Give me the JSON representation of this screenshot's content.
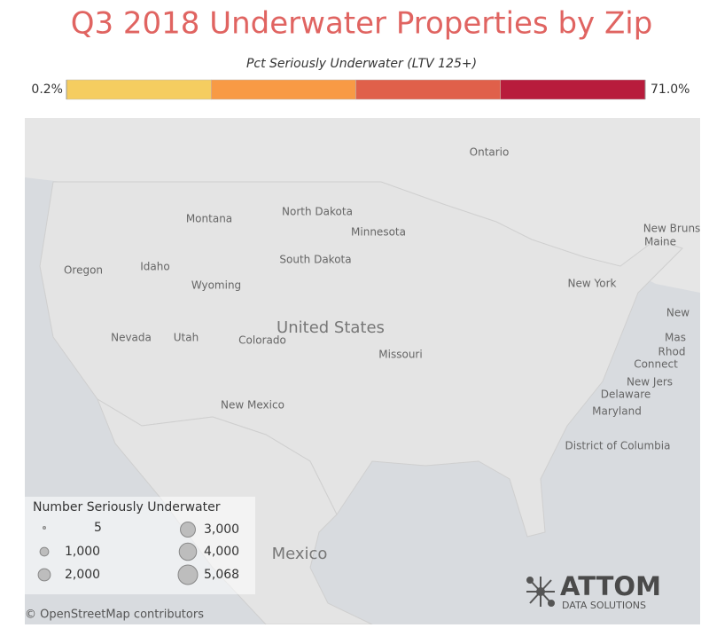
{
  "title": "Q3 2018 Underwater Properties by Zip",
  "color_legend": {
    "title": "Pct Seriously Underwater (LTV 125+)",
    "range": [
      {
        "value": 0.2,
        "label": "0.2%"
      },
      {
        "value": 71.0,
        "label": "71.0%"
      }
    ],
    "colors": [
      "#f5cd60",
      "#f89a45",
      "#e0604a",
      "#b81c3c"
    ]
  },
  "size_legend": {
    "title": "Number Seriously Underwater",
    "sizes": [
      5,
      {
        "value": 1000,
        "label": "1,000"
      },
      {
        "value": 2000,
        "label": "2,000"
      },
      {
        "value": 3000,
        "label": "3,000"
      },
      {
        "value": 4000,
        "label": "4,000"
      },
      {
        "value": 5068,
        "label": "5,068"
      }
    ]
  },
  "place_labels": [
    "Ontario",
    "Montana",
    "North Dakota",
    "Minnesota",
    "South Dakota",
    "Idaho",
    "Oregon",
    "Wyoming",
    "Nevada",
    "Utah",
    "Colorado",
    "United States",
    "Missouri",
    "New Mexico",
    "Mexico",
    "Maine",
    "New Bruns",
    "New York",
    "New",
    "Mas",
    "Rhod",
    "Connect",
    "New Jers",
    "Delaware",
    "Maryland",
    "District of Columbia"
  ],
  "attribution": "© OpenStreetMap contributors",
  "logo": {
    "name": "ATTOM",
    "tagline": "DATA SOLUTIONS"
  }
}
